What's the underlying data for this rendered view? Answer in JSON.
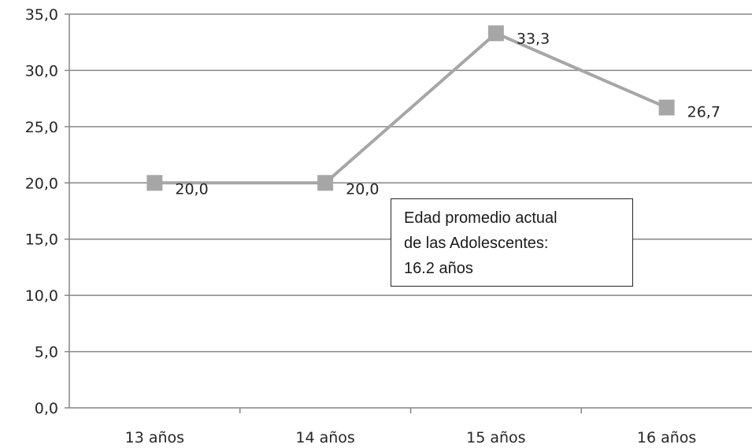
{
  "chart_data": {
    "type": "line",
    "categories": [
      "13 años",
      "14 años",
      "15 años",
      "16 años"
    ],
    "series": [
      {
        "values": [
          20.0,
          20.0,
          33.3,
          26.7
        ],
        "data_labels": [
          "20,0",
          "20,0",
          "33,3",
          "26,7"
        ]
      }
    ],
    "ylim": [
      0,
      35
    ],
    "y_ticks": [
      0,
      5,
      10,
      15,
      20,
      25,
      30,
      35
    ],
    "y_tick_labels": [
      "0,0",
      "5,0",
      "10,0",
      "15,0",
      "20,0",
      "25,0",
      "30,0",
      "35,0"
    ],
    "grid": true,
    "legend": "none",
    "series_color": "#a6a6a6",
    "gridline_color": "#868686",
    "annotation": {
      "lines": [
        "Edad promedio actual",
        "de las Adolescentes:",
        "16.2 años"
      ]
    }
  }
}
